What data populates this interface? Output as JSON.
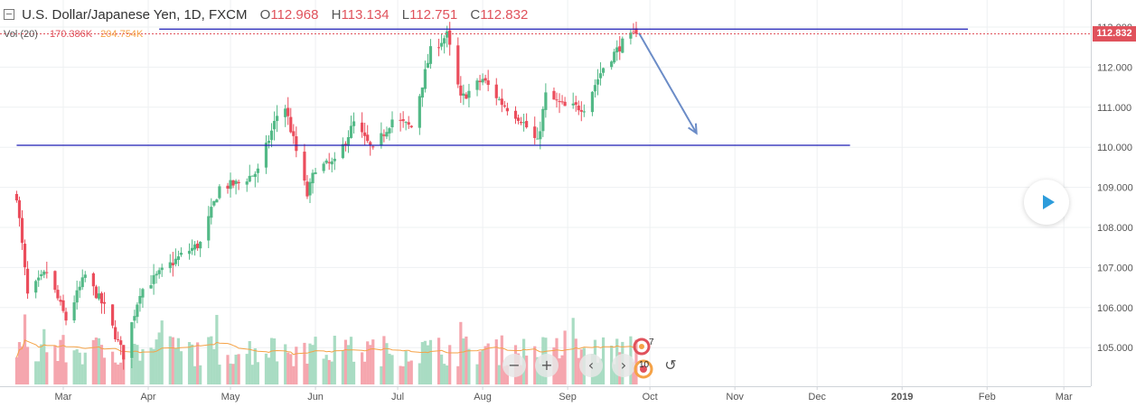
{
  "header": {
    "symbol": "U.S. Dollar/Japanese Yen, 1D, FXCM",
    "o_label": "O",
    "o_value": "112.968",
    "h_label": "H",
    "h_value": "113.134",
    "l_label": "L",
    "l_value": "112.751",
    "c_label": "C",
    "c_value": "112.832"
  },
  "volume": {
    "label": "Vol (20)",
    "value": "170.386K",
    "ma_value": "204.754K"
  },
  "last_price": "112.832",
  "controls": {
    "zoom_out": "−",
    "zoom_in": "+",
    "scroll_left": "‹",
    "scroll_right": "›",
    "reset": "↺"
  },
  "indicator_badges": {
    "top": "7",
    "bottom": "10"
  },
  "colors": {
    "up": "#53b987",
    "down": "#eb4d5c",
    "vol_up": "#a9dcc3",
    "vol_down": "#f5a6ae",
    "vol_ma": "#f5a246",
    "support_line": "#1c1cb5",
    "arrow": "#6b8cc7",
    "last_price": "#e0525c",
    "play": "#2d9cdb"
  },
  "chart_data": {
    "type": "candlestick",
    "title": "U.S. Dollar/Japanese Yen, 1D, FXCM",
    "xlabel": "",
    "ylabel": "",
    "x_ticks": [
      "Mar",
      "Apr",
      "May",
      "Jun",
      "Jul",
      "Aug",
      "Sep",
      "Oct",
      "Nov",
      "Dec",
      "2019",
      "Feb",
      "Mar"
    ],
    "y_ticks": [
      "105.000",
      "106.000",
      "107.000",
      "108.000",
      "109.000",
      "110.000",
      "111.000",
      "112.000",
      "113.000"
    ],
    "ylim": [
      104.35,
      113.25
    ],
    "grid": true,
    "series": [
      {
        "name": "USD/JPY daily close (approx)",
        "anchors": [
          {
            "date": "2018-02-12",
            "close": 108.8
          },
          {
            "date": "2018-02-16",
            "close": 106.3
          },
          {
            "date": "2018-02-23",
            "close": 106.9
          },
          {
            "date": "2018-03-02",
            "close": 105.7
          },
          {
            "date": "2018-03-09",
            "close": 106.8
          },
          {
            "date": "2018-03-16",
            "close": 106.0
          },
          {
            "date": "2018-03-23",
            "close": 104.8
          },
          {
            "date": "2018-03-29",
            "close": 106.4
          },
          {
            "date": "2018-04-06",
            "close": 106.9
          },
          {
            "date": "2018-04-13",
            "close": 107.3
          },
          {
            "date": "2018-04-20",
            "close": 107.6
          },
          {
            "date": "2018-04-27",
            "close": 109.0
          },
          {
            "date": "2018-05-04",
            "close": 109.1
          },
          {
            "date": "2018-05-11",
            "close": 109.4
          },
          {
            "date": "2018-05-18",
            "close": 110.8
          },
          {
            "date": "2018-05-21",
            "close": 111.0
          },
          {
            "date": "2018-05-29",
            "close": 108.8
          },
          {
            "date": "2018-06-01",
            "close": 109.5
          },
          {
            "date": "2018-06-08",
            "close": 109.6
          },
          {
            "date": "2018-06-15",
            "close": 110.6
          },
          {
            "date": "2018-06-22",
            "close": 109.9
          },
          {
            "date": "2018-06-29",
            "close": 110.7
          },
          {
            "date": "2018-07-06",
            "close": 110.5
          },
          {
            "date": "2018-07-13",
            "close": 112.4
          },
          {
            "date": "2018-07-19",
            "close": 112.8
          },
          {
            "date": "2018-07-24",
            "close": 111.2
          },
          {
            "date": "2018-08-01",
            "close": 111.7
          },
          {
            "date": "2018-08-08",
            "close": 111.1
          },
          {
            "date": "2018-08-15",
            "close": 110.7
          },
          {
            "date": "2018-08-21",
            "close": 110.1
          },
          {
            "date": "2018-08-24",
            "close": 111.3
          },
          {
            "date": "2018-08-31",
            "close": 111.0
          },
          {
            "date": "2018-09-07",
            "close": 111.0
          },
          {
            "date": "2018-09-14",
            "close": 112.0
          },
          {
            "date": "2018-09-21",
            "close": 112.6
          },
          {
            "date": "2018-09-26",
            "close": 112.83
          }
        ]
      },
      {
        "name": "Vol (20) volume",
        "value_last": "170.386K"
      },
      {
        "name": "Volume moving average",
        "value_last": "204.754K"
      }
    ],
    "annotations": [
      {
        "type": "horizontal_line",
        "price": 112.95,
        "from": "2018-04-05",
        "to": "2019-01-25"
      },
      {
        "type": "horizontal_line",
        "price": 110.05,
        "from": "2018-02-12",
        "to": "2018-12-13"
      },
      {
        "type": "arrow",
        "from": {
          "date": "2018-09-27",
          "price": 112.85
        },
        "to": {
          "date": "2018-10-18",
          "price": 110.35
        }
      }
    ]
  }
}
